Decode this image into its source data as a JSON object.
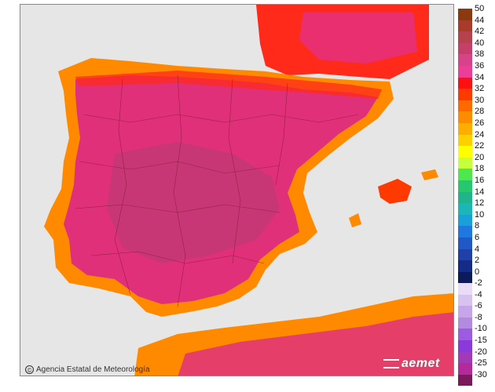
{
  "credit": {
    "copyright_symbol": "©",
    "text": "Agencia Estatal de Meteorología"
  },
  "logo": {
    "text": "aemet"
  },
  "legend": {
    "positive": [
      {
        "label": "50",
        "color": "#8b3a0f"
      },
      {
        "label": "44",
        "color": "#a83b2a"
      },
      {
        "label": "42",
        "color": "#b8414e"
      },
      {
        "label": "40",
        "color": "#c63f6a"
      },
      {
        "label": "38",
        "color": "#d7428a"
      },
      {
        "label": "36",
        "color": "#ec3e95"
      },
      {
        "label": "34",
        "color": "#ff1010"
      },
      {
        "label": "32",
        "color": "#ff3a00"
      },
      {
        "label": "30",
        "color": "#ff6a00"
      },
      {
        "label": "28",
        "color": "#ff8c00"
      },
      {
        "label": "26",
        "color": "#ffad00"
      },
      {
        "label": "24",
        "color": "#ffd000"
      },
      {
        "label": "22",
        "color": "#ffff00"
      },
      {
        "label": "20",
        "color": "#c6ff3c"
      },
      {
        "label": "18",
        "color": "#4ee84e"
      },
      {
        "label": "16",
        "color": "#27c86d"
      },
      {
        "label": "14",
        "color": "#20b48c"
      },
      {
        "label": "12",
        "color": "#1cb6b6"
      },
      {
        "label": "10",
        "color": "#18a0d8"
      },
      {
        "label": "8",
        "color": "#1e78e0"
      },
      {
        "label": "6",
        "color": "#2158c8"
      },
      {
        "label": "4",
        "color": "#1e40a8"
      },
      {
        "label": "2",
        "color": "#142c88"
      },
      {
        "label": "0",
        "color": "#0c1a5c"
      }
    ],
    "negative": [
      {
        "label": "-2",
        "color": "#eadcf6"
      },
      {
        "label": "-4",
        "color": "#d8c2ee"
      },
      {
        "label": "-6",
        "color": "#c6a6e8"
      },
      {
        "label": "-8",
        "color": "#b28ae0"
      },
      {
        "label": "-10",
        "color": "#9c5ce2"
      },
      {
        "label": "-15",
        "color": "#8a3ad8"
      },
      {
        "label": "-20",
        "color": "#a23ab8"
      },
      {
        "label": "-25",
        "color": "#b42a9c"
      },
      {
        "label": "-30",
        "color": "#7a1a5c"
      }
    ]
  }
}
